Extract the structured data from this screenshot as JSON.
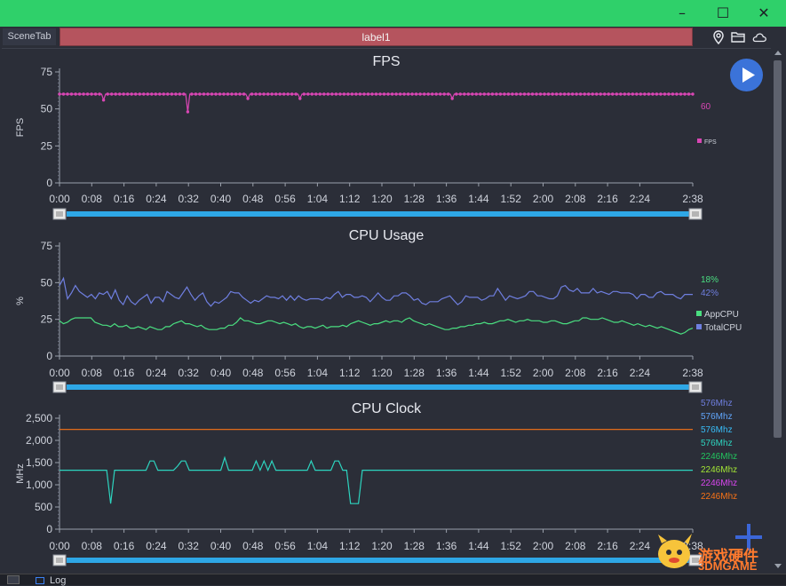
{
  "window": {
    "minimize_label": "–",
    "maximize_label": "☐",
    "close_label": "✕",
    "titlebar_color": "#2fd06a"
  },
  "tabs": {
    "scene_tab": "SceneTab",
    "active_label": "label1"
  },
  "toolbar_icons": [
    "location-icon",
    "folder-icon",
    "cloud-icon"
  ],
  "bottom": {
    "log_label": "Log"
  },
  "watermark": {
    "line1": "游戏硬件",
    "line2": "3DMGAME"
  },
  "time_ticks": [
    "0:00",
    "0:08",
    "0:16",
    "0:24",
    "0:32",
    "0:40",
    "0:48",
    "0:56",
    "1:04",
    "1:12",
    "1:20",
    "1:28",
    "1:36",
    "1:44",
    "1:52",
    "2:00",
    "2:08",
    "2:16",
    "2:24",
    "2:38"
  ],
  "chart_data": [
    {
      "type": "line",
      "title": "FPS",
      "ylabel": "FPS",
      "ylim": [
        0,
        75
      ],
      "yticks": [
        "0",
        "25",
        "50",
        "75"
      ],
      "xlim": [
        0,
        158
      ],
      "series": [
        {
          "name": "FPS",
          "color": "#d946b4",
          "markers": true,
          "current_value": "60",
          "values": [
            60,
            60,
            60,
            60,
            60,
            60,
            60,
            60,
            60,
            60,
            60,
            60,
            60,
            60,
            60,
            60,
            60,
            60,
            60,
            60,
            60,
            60,
            56,
            60,
            60,
            60,
            60,
            60,
            60,
            60,
            60,
            60,
            60,
            60,
            60,
            60,
            60,
            60,
            60,
            60,
            60,
            60,
            60,
            60,
            60,
            60,
            60,
            60,
            60,
            60,
            60,
            60,
            60,
            60,
            60,
            60,
            60,
            60,
            60,
            60,
            60,
            60,
            60,
            60,
            48,
            60,
            60,
            60,
            60,
            60,
            60,
            60,
            60,
            60,
            60,
            60,
            60,
            60,
            60,
            60,
            60,
            60,
            60,
            60,
            60,
            60,
            60,
            60,
            60,
            60,
            60,
            60,
            60,
            60,
            57,
            60,
            60,
            60,
            60,
            60,
            60,
            60,
            60,
            60,
            60,
            60,
            60,
            60,
            60,
            60,
            60,
            60,
            60,
            60,
            60,
            60,
            60,
            60,
            60,
            60,
            57,
            60,
            60,
            60,
            60,
            60,
            60,
            60,
            60,
            60,
            60,
            60,
            60,
            60,
            60,
            60,
            60,
            60,
            60,
            60,
            60,
            60,
            60,
            60,
            60,
            60,
            60,
            60,
            60,
            60,
            60,
            60,
            60,
            60,
            60,
            60,
            60,
            60,
            60,
            60,
            60,
            60,
            60,
            60,
            60,
            60,
            60,
            60,
            60,
            60,
            60,
            60,
            60,
            60,
            60,
            60,
            60,
            60,
            60,
            60,
            60,
            60,
            60,
            60,
            60,
            60,
            60,
            60,
            60,
            60,
            60,
            60,
            60,
            60,
            60,
            60,
            57,
            60,
            60,
            60,
            60,
            60,
            60,
            60,
            60,
            60,
            60,
            60,
            60,
            60,
            60,
            60,
            60,
            60,
            60,
            60,
            60,
            60,
            60,
            60,
            60,
            60,
            60,
            60,
            60,
            60,
            60,
            60,
            60,
            60,
            60,
            60,
            60,
            60,
            60,
            60,
            60,
            60,
            60,
            60,
            60,
            60,
            60,
            60,
            60,
            60,
            60,
            60,
            60,
            60,
            60,
            60,
            60,
            60,
            60,
            60,
            60,
            60,
            60,
            60,
            60,
            60,
            60,
            60,
            60,
            60,
            60,
            60,
            60,
            60,
            60,
            60,
            60,
            60,
            60,
            60,
            60,
            60,
            60,
            60,
            60,
            60,
            60,
            60,
            60,
            60,
            60,
            60,
            60,
            60,
            60,
            60,
            60,
            60,
            60,
            60,
            60,
            60,
            60,
            60,
            60,
            60,
            60,
            60,
            60,
            60,
            60,
            60,
            60,
            60,
            60,
            60,
            60,
            60,
            60,
            60,
            60
          ]
        }
      ],
      "legend": [
        "FPS"
      ]
    },
    {
      "type": "line",
      "title": "CPU Usage",
      "ylabel": "%",
      "ylim": [
        0,
        75
      ],
      "yticks": [
        "0",
        "25",
        "50",
        "75"
      ],
      "xlim": [
        0,
        158
      ],
      "series": [
        {
          "name": "AppCPU",
          "color": "#4ade80",
          "current_value": "18%",
          "values": [
            24,
            22,
            23,
            25,
            26,
            26,
            26,
            26,
            26,
            23,
            22,
            21,
            21,
            20,
            22,
            20,
            20,
            21,
            19,
            19,
            20,
            19,
            18,
            20,
            19,
            18,
            18,
            20,
            20,
            22,
            23,
            24,
            22,
            22,
            21,
            20,
            21,
            19,
            18,
            18,
            18,
            19,
            19,
            21,
            21,
            23,
            26,
            24,
            24,
            23,
            22,
            22,
            23,
            24,
            24,
            23,
            22,
            23,
            22,
            21,
            22,
            20,
            19,
            20,
            20,
            19,
            20,
            21,
            19,
            20,
            20,
            20,
            21,
            20,
            22,
            23,
            24,
            23,
            22,
            21,
            22,
            22,
            23,
            24,
            23,
            24,
            24,
            23,
            25,
            26,
            24,
            23,
            22,
            21,
            22,
            21,
            20,
            19,
            18,
            18,
            19,
            19,
            20,
            20,
            21,
            21,
            22,
            22,
            23,
            22,
            22,
            23,
            24,
            24,
            25,
            24,
            23,
            24,
            24,
            25,
            24,
            24,
            24,
            23,
            23,
            24,
            24,
            23,
            22,
            22,
            23,
            24,
            24,
            26,
            26,
            25,
            25,
            25,
            26,
            25,
            24,
            23,
            23,
            24,
            23,
            22,
            21,
            22,
            21,
            20,
            21,
            20,
            19,
            20,
            19,
            18,
            17,
            16,
            15,
            16,
            18,
            19
          ]
        },
        {
          "name": "TotalCPU",
          "color": "#6f7fe0",
          "current_value": "42%",
          "values": [
            48,
            53,
            39,
            43,
            48,
            44,
            42,
            40,
            42,
            39,
            43,
            42,
            44,
            39,
            45,
            38,
            35,
            41,
            37,
            35,
            38,
            40,
            42,
            36,
            40,
            40,
            37,
            44,
            42,
            40,
            39,
            43,
            47,
            42,
            38,
            41,
            43,
            37,
            34,
            37,
            36,
            38,
            40,
            44,
            43,
            43,
            40,
            38,
            36,
            38,
            37,
            39,
            41,
            40,
            40,
            39,
            41,
            38,
            41,
            38,
            41,
            39,
            38,
            39,
            39,
            39,
            38,
            40,
            39,
            42,
            44,
            40,
            42,
            42,
            40,
            40,
            41,
            40,
            37,
            40,
            43,
            40,
            38,
            38,
            41,
            41,
            43,
            43,
            41,
            38,
            39,
            36,
            35,
            37,
            37,
            37,
            39,
            40,
            41,
            38,
            35,
            37,
            41,
            40,
            40,
            40,
            38,
            39,
            41,
            41,
            46,
            42,
            38,
            41,
            40,
            39,
            40,
            41,
            44,
            44,
            41,
            41,
            40,
            39,
            39,
            41,
            47,
            48,
            45,
            44,
            46,
            43,
            43,
            43,
            46,
            43,
            44,
            43,
            42,
            44,
            44,
            43,
            43,
            43,
            42,
            39,
            42,
            42,
            40,
            40,
            43,
            44,
            42,
            42,
            42,
            40,
            39,
            42,
            42,
            42
          ]
        }
      ],
      "legend": [
        "AppCPU",
        "TotalCPU"
      ]
    },
    {
      "type": "line",
      "title": "CPU Clock",
      "ylabel": "MHz",
      "ylim": [
        0,
        2500
      ],
      "yticks": [
        "0",
        "500",
        "1,000",
        "1,500",
        "2,000",
        "2,500"
      ],
      "xlim": [
        0,
        158
      ],
      "series": [
        {
          "name": "576Mhz",
          "color": "#6f7fe0",
          "values": []
        },
        {
          "name": "576Mhz",
          "color": "#60a5fa",
          "values": []
        },
        {
          "name": "576Mhz",
          "color": "#38bdf8",
          "values": []
        },
        {
          "name": "576Mhz",
          "color": "#2dd4bf",
          "values": [
            1328,
            1328,
            1328,
            1328,
            1328,
            1328,
            1328,
            1328,
            1328,
            1328,
            1328,
            1328,
            1328,
            576,
            1328,
            1328,
            1328,
            1328,
            1328,
            1328,
            1328,
            1328,
            1328,
            1536,
            1536,
            1328,
            1328,
            1328,
            1328,
            1328,
            1420,
            1536,
            1536,
            1328,
            1328,
            1328,
            1328,
            1328,
            1328,
            1328,
            1328,
            1328,
            1612,
            1328,
            1328,
            1328,
            1328,
            1328,
            1328,
            1328,
            1536,
            1328,
            1536,
            1328,
            1536,
            1328,
            1328,
            1328,
            1328,
            1328,
            1328,
            1328,
            1328,
            1328,
            1536,
            1328,
            1328,
            1328,
            1328,
            1328,
            1536,
            1536,
            1328,
            1328,
            576,
            576,
            576,
            1328,
            1328,
            1328,
            1328,
            1328,
            1328,
            1328,
            1328,
            1328,
            1328,
            1328,
            1328,
            1328,
            1328,
            1328,
            1328,
            1328,
            1328,
            1328,
            1328,
            1328,
            1328,
            1328,
            1328,
            1328,
            1328,
            1328,
            1328,
            1328,
            1328,
            1328,
            1328,
            1328,
            1328,
            1328,
            1328,
            1328,
            1328,
            1328,
            1328,
            1328,
            1328,
            1328,
            1328,
            1328,
            1328,
            1328,
            1328,
            1328,
            1328,
            1328,
            1328,
            1328,
            1328,
            1328,
            1328,
            1328,
            1328,
            1328,
            1328,
            1328,
            1328,
            1328,
            1328,
            1328,
            1328,
            1328,
            1328,
            1328,
            1328,
            1328,
            1328,
            1328,
            1328,
            1328,
            1328,
            1328,
            1328,
            1328,
            1328,
            1328,
            1328,
            1328,
            1328,
            1328
          ]
        },
        {
          "name": "2246Mhz",
          "color": "#22c55e",
          "values": []
        },
        {
          "name": "2246Mhz",
          "color": "#a3e635",
          "values": []
        },
        {
          "name": "2246Mhz",
          "color": "#d946ef",
          "values": []
        },
        {
          "name": "2246Mhz",
          "color": "#f97316",
          "values": [
            2246,
            2246,
            2246,
            2246,
            2246,
            2246,
            2246,
            2246,
            2246,
            2246,
            2246,
            2246,
            2246,
            2246,
            2246,
            2246,
            2246,
            2246,
            2246,
            2246,
            2246,
            2246,
            2246,
            2246,
            2246,
            2246,
            2246,
            2246,
            2246,
            2246,
            2246,
            2246,
            2246,
            2246,
            2246,
            2246,
            2246,
            2246,
            2246,
            2246,
            2246,
            2246,
            2246,
            2246,
            2246,
            2246,
            2246,
            2246,
            2246,
            2246,
            2246,
            2246,
            2246,
            2246,
            2246,
            2246,
            2246,
            2246,
            2246,
            2246,
            2246,
            2246,
            2246,
            2246,
            2246,
            2246,
            2246,
            2246,
            2246,
            2246,
            2246,
            2246,
            2246,
            2246,
            2246,
            2246,
            2246,
            2246,
            2246,
            2246,
            2246,
            2246,
            2246,
            2246,
            2246,
            2246,
            2246,
            2246,
            2246,
            2246,
            2246,
            2246,
            2246,
            2246,
            2246,
            2246,
            2246,
            2246,
            2246,
            2246,
            2246,
            2246,
            2246,
            2246,
            2246,
            2246,
            2246,
            2246,
            2246,
            2246,
            2246,
            2246,
            2246,
            2246,
            2246,
            2246,
            2246,
            2246,
            2246,
            2246,
            2246,
            2246,
            2246,
            2246,
            2246,
            2246,
            2246,
            2246,
            2246,
            2246,
            2246,
            2246,
            2246,
            2246,
            2246,
            2246,
            2246,
            2246,
            2246,
            2246,
            2246,
            2246,
            2246,
            2246,
            2246,
            2246,
            2246,
            2246,
            2246,
            2246,
            2246,
            2246,
            2246,
            2246,
            2246,
            2246,
            2246,
            2246,
            2246
          ]
        }
      ]
    }
  ]
}
